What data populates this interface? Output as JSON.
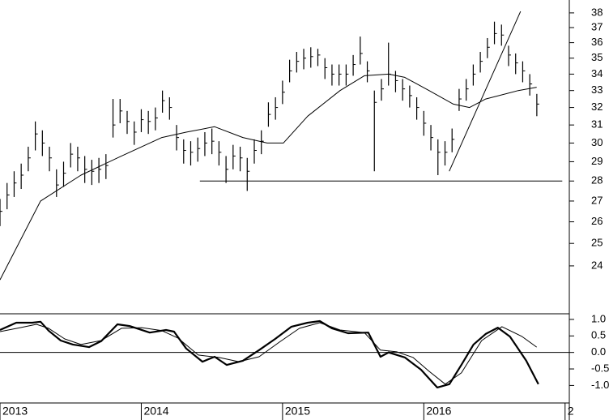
{
  "chart_data": [
    {
      "type": "ohlc",
      "log": true,
      "color": "#000000",
      "x": [
        2013,
        2013.05,
        2013.1,
        2013.15,
        2013.2,
        2013.25,
        2013.3,
        2013.35,
        2013.4,
        2013.45,
        2013.5,
        2013.55,
        2013.6,
        2013.65,
        2013.7,
        2013.75,
        2013.8,
        2013.85,
        2013.9,
        2013.95,
        2014,
        2014.05,
        2014.1,
        2014.15,
        2014.2,
        2014.25,
        2014.3,
        2014.35,
        2014.4,
        2014.45,
        2014.5,
        2014.55,
        2014.6,
        2014.65,
        2014.7,
        2014.75,
        2014.8,
        2014.85,
        2014.9,
        2014.95,
        2015,
        2015.05,
        2015.1,
        2015.15,
        2015.2,
        2015.25,
        2015.3,
        2015.35,
        2015.4,
        2015.45,
        2015.5,
        2015.55,
        2015.6,
        2015.65,
        2015.7,
        2015.75,
        2015.8,
        2015.85,
        2015.9,
        2015.95,
        2016,
        2016.05,
        2016.1,
        2016.15,
        2016.2,
        2016.25,
        2016.3,
        2016.35,
        2016.4,
        2016.45,
        2016.5,
        2016.55,
        2016.6,
        2016.65,
        2016.7,
        2016.75,
        2016.8
      ],
      "high": [
        27.1,
        27.9,
        28.5,
        28.9,
        29.8,
        31.2,
        30.7,
        29.8,
        28.6,
        29.0,
        30.0,
        29.8,
        29.3,
        29.1,
        29.2,
        29.4,
        32.5,
        32.5,
        31.8,
        31.2,
        31.9,
        31.8,
        32.0,
        33.0,
        32.6,
        31.0,
        30.2,
        30.1,
        30.3,
        30.6,
        30.8,
        30.1,
        29.3,
        29.9,
        29.8,
        29.2,
        30.2,
        30.7,
        32.3,
        32.6,
        33.6,
        34.9,
        35.4,
        35.6,
        35.7,
        35.6,
        35.0,
        34.6,
        34.6,
        34.6,
        35.2,
        36.4,
        34.8,
        33.0,
        33.7,
        36.0,
        34.2,
        33.7,
        33.3,
        32.6,
        31.8,
        31.0,
        30.2,
        30.1,
        30.8,
        33.1,
        33.7,
        34.6,
        35.4,
        36.3,
        37.4,
        37.2,
        35.8,
        35.3,
        34.8,
        34.0,
        32.8
      ],
      "low": [
        25.8,
        26.6,
        27.2,
        27.6,
        28.5,
        29.6,
        29.3,
        28.5,
        27.2,
        27.7,
        28.7,
        28.5,
        27.9,
        27.8,
        27.9,
        28.1,
        30.3,
        31.1,
        30.5,
        29.9,
        30.6,
        30.5,
        30.7,
        31.7,
        31.3,
        29.6,
        28.9,
        28.8,
        29.0,
        29.3,
        29.4,
        28.8,
        27.9,
        28.6,
        28.5,
        27.5,
        28.9,
        29.4,
        30.9,
        31.3,
        32.2,
        33.5,
        34.1,
        34.3,
        34.4,
        34.5,
        33.7,
        33.3,
        33.3,
        33.3,
        33.9,
        34.6,
        33.5,
        28.5,
        32.4,
        33.3,
        32.9,
        32.4,
        32.0,
        31.3,
        30.4,
        29.6,
        28.3,
        28.8,
        29.5,
        31.8,
        32.4,
        33.3,
        34.1,
        35.0,
        35.9,
        35.8,
        34.5,
        34.0,
        33.5,
        32.7,
        31.5
      ],
      "close": [
        26.5,
        27.3,
        27.9,
        28.3,
        29.2,
        30.5,
        30,
        29.2,
        27.8,
        28.4,
        29.4,
        29.2,
        28.6,
        28.5,
        28.6,
        28.8,
        31,
        31.8,
        31.2,
        30.6,
        31.3,
        31.2,
        31.4,
        32.4,
        32,
        30.3,
        29.6,
        29.5,
        29.7,
        30,
        30.1,
        29.5,
        28.6,
        29.3,
        29.2,
        28.5,
        29.6,
        30.1,
        31.6,
        32,
        32.9,
        34.2,
        34.8,
        35,
        35.1,
        35.2,
        34.4,
        34,
        34,
        34,
        34.6,
        35.3,
        34.2,
        32.3,
        33.1,
        34,
        33.6,
        33.1,
        32.7,
        32,
        31.1,
        30.3,
        29.5,
        29.5,
        30.2,
        32.5,
        33.1,
        34,
        34.8,
        35.7,
        36.6,
        36.5,
        35.2,
        34.7,
        34.2,
        33.4,
        32.2
      ],
      "series": [
        {
          "color": "#000000",
          "x": [
            2013,
            2013.287,
            2013.573,
            2013.86,
            2014.146,
            2014.318,
            2014.519,
            2014.719,
            2014.891,
            2015.006,
            2015.178,
            2015.407,
            2015.579,
            2015.751,
            2015.865,
            2016.037,
            2016.209,
            2016.324,
            2016.438,
            2016.668,
            2016.799
          ],
          "values": [
            23.4,
            27,
            28.3,
            29.3,
            30.3,
            30.6,
            30.9,
            30.3,
            30,
            30,
            31.5,
            33,
            33.9,
            34,
            33.8,
            33,
            32.2,
            32,
            32.5,
            33,
            33.2
          ]
        },
        {
          "color": "#000000",
          "x": [
            2014.415,
            2016.98
          ],
          "values": [
            28,
            28
          ]
        },
        {
          "color": "#000000",
          "x": [
            2016.18,
            2016.685
          ],
          "values": [
            28.5,
            38.1
          ]
        }
      ],
      "xlim": [
        2013,
        2017.03
      ],
      "ylim": [
        22,
        38.9
      ],
      "yticks": [
        24,
        25,
        26,
        27,
        28,
        29,
        30,
        31,
        32,
        33,
        34,
        35,
        36,
        37,
        38
      ]
    },
    {
      "type": "line",
      "color": "#000000",
      "series": [
        {
          "color": "#000000",
          "width": 2.2,
          "x": [
            2013,
            2013.115,
            2013.229,
            2013.287,
            2013.344,
            2013.43,
            2013.516,
            2013.63,
            2013.716,
            2013.831,
            2013.917,
            2014.06,
            2014.175,
            2014.232,
            2014.318,
            2014.433,
            2014.519,
            2014.605,
            2014.719,
            2014.834,
            2014.948,
            2015.063,
            2015.178,
            2015.264,
            2015.35,
            2015.464,
            2015.607,
            2015.693,
            2015.751,
            2015.865,
            2015.98,
            2016.095,
            2016.181,
            2016.266,
            2016.352,
            2016.438,
            2016.524,
            2016.61,
            2016.725,
            2016.811
          ],
          "values": [
            0.68,
            0.9,
            0.9,
            0.93,
            0.66,
            0.36,
            0.24,
            0.16,
            0.34,
            0.85,
            0.8,
            0.6,
            0.68,
            0.63,
            0.12,
            -0.28,
            -0.13,
            -0.38,
            -0.25,
            0.07,
            0.41,
            0.78,
            0.9,
            0.95,
            0.73,
            0.58,
            0.6,
            -0.13,
            0,
            -0.15,
            -0.52,
            -1.06,
            -0.96,
            -0.38,
            0.24,
            0.56,
            0.75,
            0.48,
            -0.25,
            -0.96
          ]
        },
        {
          "color": "#000000",
          "width": 1,
          "x": [
            2013,
            2013.143,
            2013.258,
            2013.344,
            2013.458,
            2013.573,
            2013.716,
            2013.86,
            2014.003,
            2014.146,
            2014.261,
            2014.404,
            2014.547,
            2014.691,
            2014.834,
            2014.977,
            2015.12,
            2015.264,
            2015.407,
            2015.579,
            2015.693,
            2015.808,
            2015.923,
            2016.037,
            2016.152,
            2016.266,
            2016.41,
            2016.553,
            2016.696,
            2016.799
          ],
          "values": [
            0.63,
            0.75,
            0.85,
            0.73,
            0.41,
            0.24,
            0.36,
            0.73,
            0.75,
            0.66,
            0.43,
            -0.08,
            -0.15,
            -0.28,
            -0.13,
            0.31,
            0.73,
            0.9,
            0.68,
            0.6,
            0.07,
            0.02,
            -0.15,
            -0.57,
            -0.96,
            -0.62,
            0.36,
            0.78,
            0.48,
            0.16
          ]
        }
      ],
      "xlim": [
        2013,
        2017.03
      ],
      "ylim": [
        -1.53,
        1.17
      ],
      "yticks": [
        {
          "value": 1,
          "label": "1.0"
        },
        {
          "value": 0.5,
          "label": "0.5"
        },
        {
          "value": 0,
          "label": "0.0"
        },
        {
          "value": -0.5,
          "label": "-0.5"
        },
        {
          "value": -1,
          "label": "-1.0"
        }
      ],
      "xticks": [
        2013,
        2014,
        2015,
        2016,
        {
          "value": 2017,
          "label": "2"
        }
      ]
    }
  ]
}
